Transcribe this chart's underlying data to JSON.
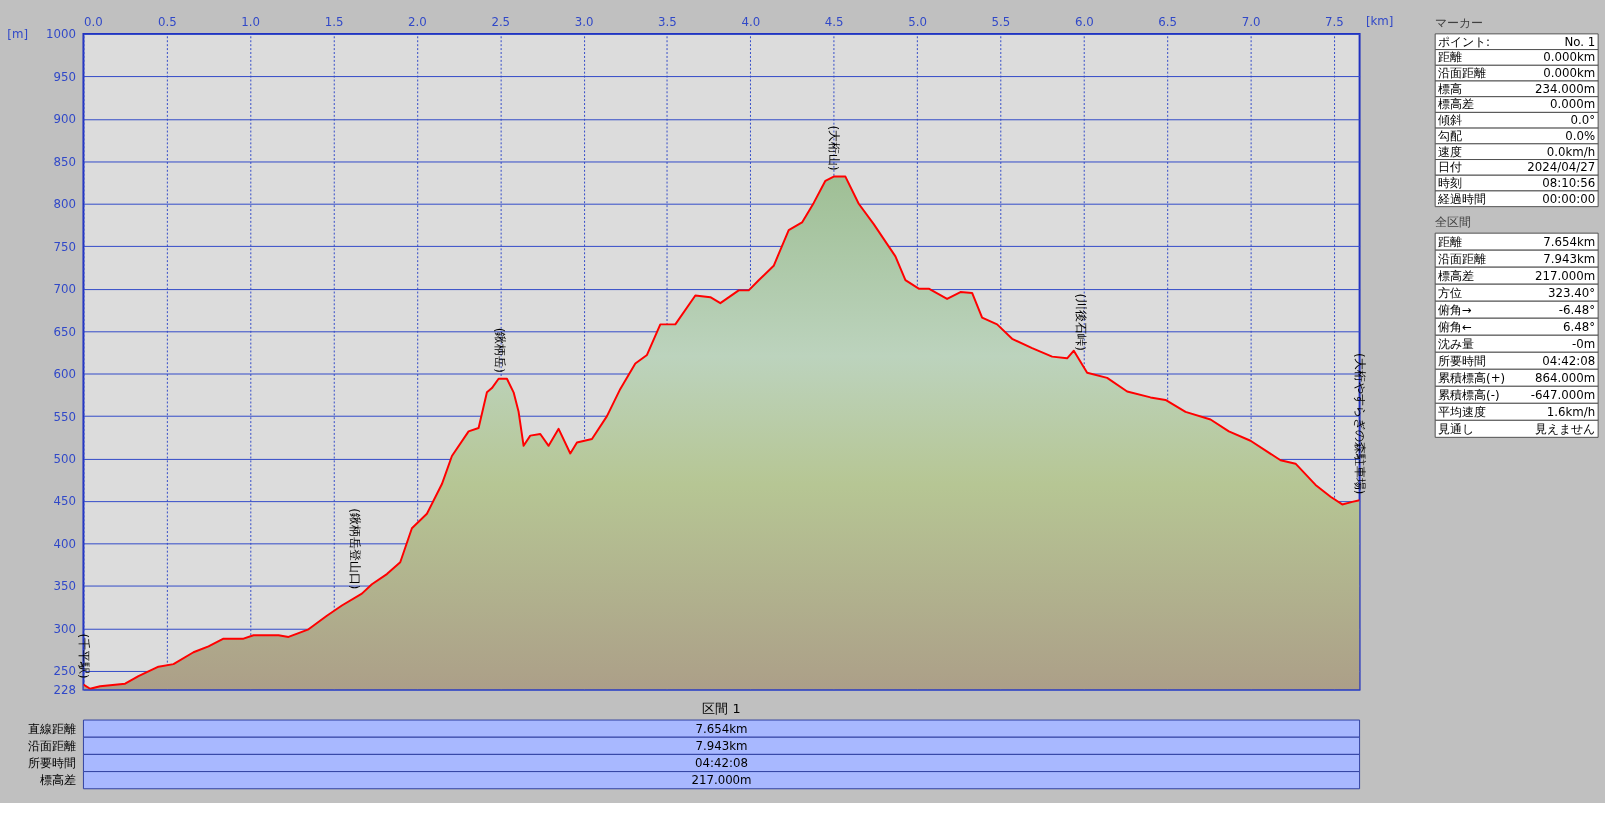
{
  "chart_data": [
    {
      "type": "area",
      "xlabel": "[km]",
      "ylabel": "[m]",
      "series": [
        {
          "color": "#ff0000",
          "x": [
            0,
            0.04,
            0.1,
            0.25,
            0.33,
            0.45,
            0.54,
            0.66,
            0.75,
            0.84,
            0.96,
            1.02,
            1.17,
            1.23,
            1.35,
            1.46,
            1.55,
            1.67,
            1.73,
            1.82,
            1.9,
            1.97,
            2.06,
            2.15,
            2.21,
            2.31,
            2.37,
            2.42,
            2.45,
            2.49,
            2.54,
            2.58,
            2.61,
            2.64,
            2.68,
            2.74,
            2.79,
            2.85,
            2.92,
            2.96,
            3.05,
            3.14,
            3.22,
            3.31,
            3.38,
            3.46,
            3.55,
            3.67,
            3.76,
            3.82,
            3.93,
            3.99,
            4.05,
            4.14,
            4.23,
            4.31,
            4.38,
            4.45,
            4.5,
            4.57,
            4.65,
            4.74,
            4.87,
            4.93,
            5.01,
            5.07,
            5.18,
            5.26,
            5.33,
            5.39,
            5.48,
            5.57,
            5.69,
            5.81,
            5.9,
            5.94,
            6.02,
            6.14,
            6.26,
            6.4,
            6.49,
            6.61,
            6.76,
            6.87,
            7.0,
            7.18,
            7.27,
            7.39,
            7.48,
            7.55,
            7.61,
            7.654
          ],
          "values": [
            234,
            229,
            232,
            235,
            244,
            255,
            258,
            272,
            279,
            288,
            288,
            292,
            292,
            290,
            299,
            315,
            327,
            341,
            352,
            364,
            378,
            418,
            435,
            470,
            503,
            532,
            536,
            578,
            583,
            594,
            594,
            578,
            555,
            515,
            527,
            529,
            515,
            535,
            506,
            519,
            523,
            550,
            582,
            612,
            622,
            658,
            658,
            692,
            690,
            683,
            698,
            698,
            710,
            727,
            769,
            778,
            801,
            827,
            832,
            832,
            800,
            776,
            738,
            710,
            700,
            700,
            688,
            696,
            695,
            666,
            658,
            641,
            630,
            620,
            618,
            627,
            601,
            595,
            579,
            572,
            569,
            555,
            546,
            532,
            521,
            498,
            494,
            469,
            455,
            446,
            449,
            451
          ]
        }
      ],
      "xlim": [
        0,
        7.654
      ],
      "xticks": [
        {
          "value": 0,
          "label": "0.0"
        },
        0.5,
        {
          "value": 1,
          "label": "1.0"
        },
        1.5,
        {
          "value": 2,
          "label": "2.0"
        },
        2.5,
        {
          "value": 3,
          "label": "3.0"
        },
        3.5,
        {
          "value": 4,
          "label": "4.0"
        },
        4.5,
        {
          "value": 5,
          "label": "5.0"
        },
        5.5,
        {
          "value": 6,
          "label": "6.0"
        },
        6.5,
        {
          "value": 7,
          "label": "7.0"
        },
        7.5
      ],
      "ylim": [
        228,
        1000
      ],
      "yticks": [
        228,
        250,
        300,
        350,
        400,
        450,
        500,
        550,
        600,
        650,
        700,
        750,
        800,
        850,
        900,
        950,
        1000
      ],
      "grid": true,
      "annotations": [
        {
          "text": "(千平駅)",
          "x": 0,
          "y": 234
        },
        {
          "text": "(鍬柄岳登山口)",
          "x": 1.63,
          "y": 339
        },
        {
          "text": "(鍬柄岳)",
          "x": 2.5,
          "y": 594
        },
        {
          "text": "(大桁山)",
          "x": 4.5,
          "y": 832
        },
        {
          "text": "(川後石峠)",
          "x": 5.98,
          "y": 620
        },
        {
          "text": "(大桁やすらぎの森駐車場)",
          "x": 7.654,
          "y": 451
        }
      ]
    },
    {
      "type": "other",
      "title": "マーカー",
      "annotations": [
        "ポイント:",
        "No. 1",
        "距離",
        "0.000km",
        "沿面距離",
        "0.000km",
        "標高",
        "234.000m",
        "標高差",
        "0.000m",
        "傾斜",
        "0.0°",
        "勾配",
        "0.0%",
        "速度",
        "0.0km/h",
        "日付",
        "2024/04/27",
        "時刻",
        "08:10:56",
        "経過時間",
        "00:00:00"
      ]
    },
    {
      "type": "other",
      "title": "全区間",
      "annotations": [
        "距離",
        "7.654km",
        "沿面距離",
        "7.943km",
        "標高差",
        "217.000m",
        "方位",
        "323.40°",
        "俯角→",
        "-6.48°",
        "俯角←",
        "6.48°",
        "沈み量",
        "-0m",
        "所要時間",
        "04:42:08",
        "累積標高(+)",
        "864.000m",
        "累積標高(-)",
        "-647.000m",
        "平均速度",
        "1.6km/h",
        "見通し",
        "見えません"
      ]
    },
    {
      "type": "other",
      "title": "区間 1",
      "annotations": [
        "直線距離",
        "7.654km",
        "沿面距離",
        "7.943km",
        "所要時間",
        "04:42:08",
        "標高差",
        "217.000m"
      ]
    }
  ]
}
